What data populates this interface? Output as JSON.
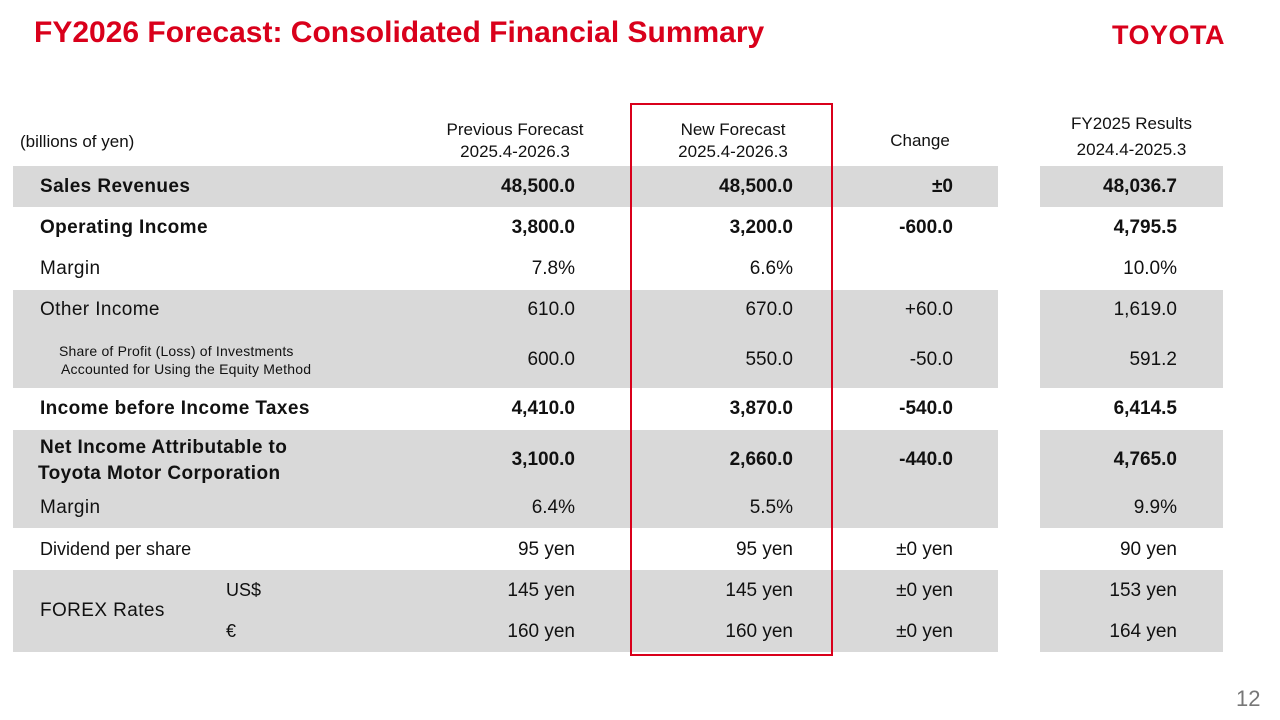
{
  "header": {
    "title": "FY2026 Forecast: Consolidated Financial Summary",
    "logo_text": "TOYOTA",
    "page_number": "12"
  },
  "table": {
    "units_label": "(billions of yen)",
    "columns": {
      "previous": [
        "Previous Forecast",
        "2025.4-2026.3"
      ],
      "new": [
        "New Forecast",
        "2025.4-2026.3"
      ],
      "change": [
        "Change"
      ],
      "fy2025": [
        "FY2025 Results",
        "2024.4-2025.3"
      ]
    },
    "rows": [
      {
        "label": "Sales Revenues",
        "previous": "48,500.0",
        "new": "48,500.0",
        "change": "±0",
        "fy2025": "48,036.7"
      },
      {
        "label": "Operating Income",
        "previous": "3,800.0",
        "new": "3,200.0",
        "change": "-600.0",
        "fy2025": "4,795.5"
      },
      {
        "label": "Margin",
        "previous": "7.8%",
        "new": "6.6%",
        "change": "",
        "fy2025": "10.0%"
      },
      {
        "label": "Other Income",
        "previous": "610.0",
        "new": "670.0",
        "change": "+60.0",
        "fy2025": "1,619.0"
      },
      {
        "label_lines": [
          "Share of Profit (Loss) of Investments",
          "Accounted for Using the Equity Method"
        ],
        "previous": "600.0",
        "new": "550.0",
        "change": "-50.0",
        "fy2025": "591.2"
      },
      {
        "label": "Income before Income Taxes",
        "previous": "4,410.0",
        "new": "3,870.0",
        "change": "-540.0",
        "fy2025": "6,414.5"
      },
      {
        "label_lines": [
          "Net Income Attributable to",
          "Toyota Motor Corporation"
        ],
        "previous": "3,100.0",
        "new": "2,660.0",
        "change": "-440.0",
        "fy2025": "4,765.0"
      },
      {
        "label": "Margin",
        "previous": "6.4%",
        "new": "5.5%",
        "change": "",
        "fy2025": "9.9%"
      },
      {
        "label": "Dividend per share",
        "previous": "95 yen",
        "new": "95 yen",
        "change": "±0 yen",
        "fy2025": "90 yen"
      },
      {
        "group_label": "FOREX Rates",
        "label": "US$",
        "previous": "145 yen",
        "new": "145 yen",
        "change": "±0 yen",
        "fy2025": "153 yen"
      },
      {
        "label": "€",
        "previous": "160 yen",
        "new": "160 yen",
        "change": "±0 yen",
        "fy2025": "164 yen"
      }
    ]
  },
  "colors": {
    "accent": "#d9001b",
    "row_shade": "#d9d9d9"
  }
}
